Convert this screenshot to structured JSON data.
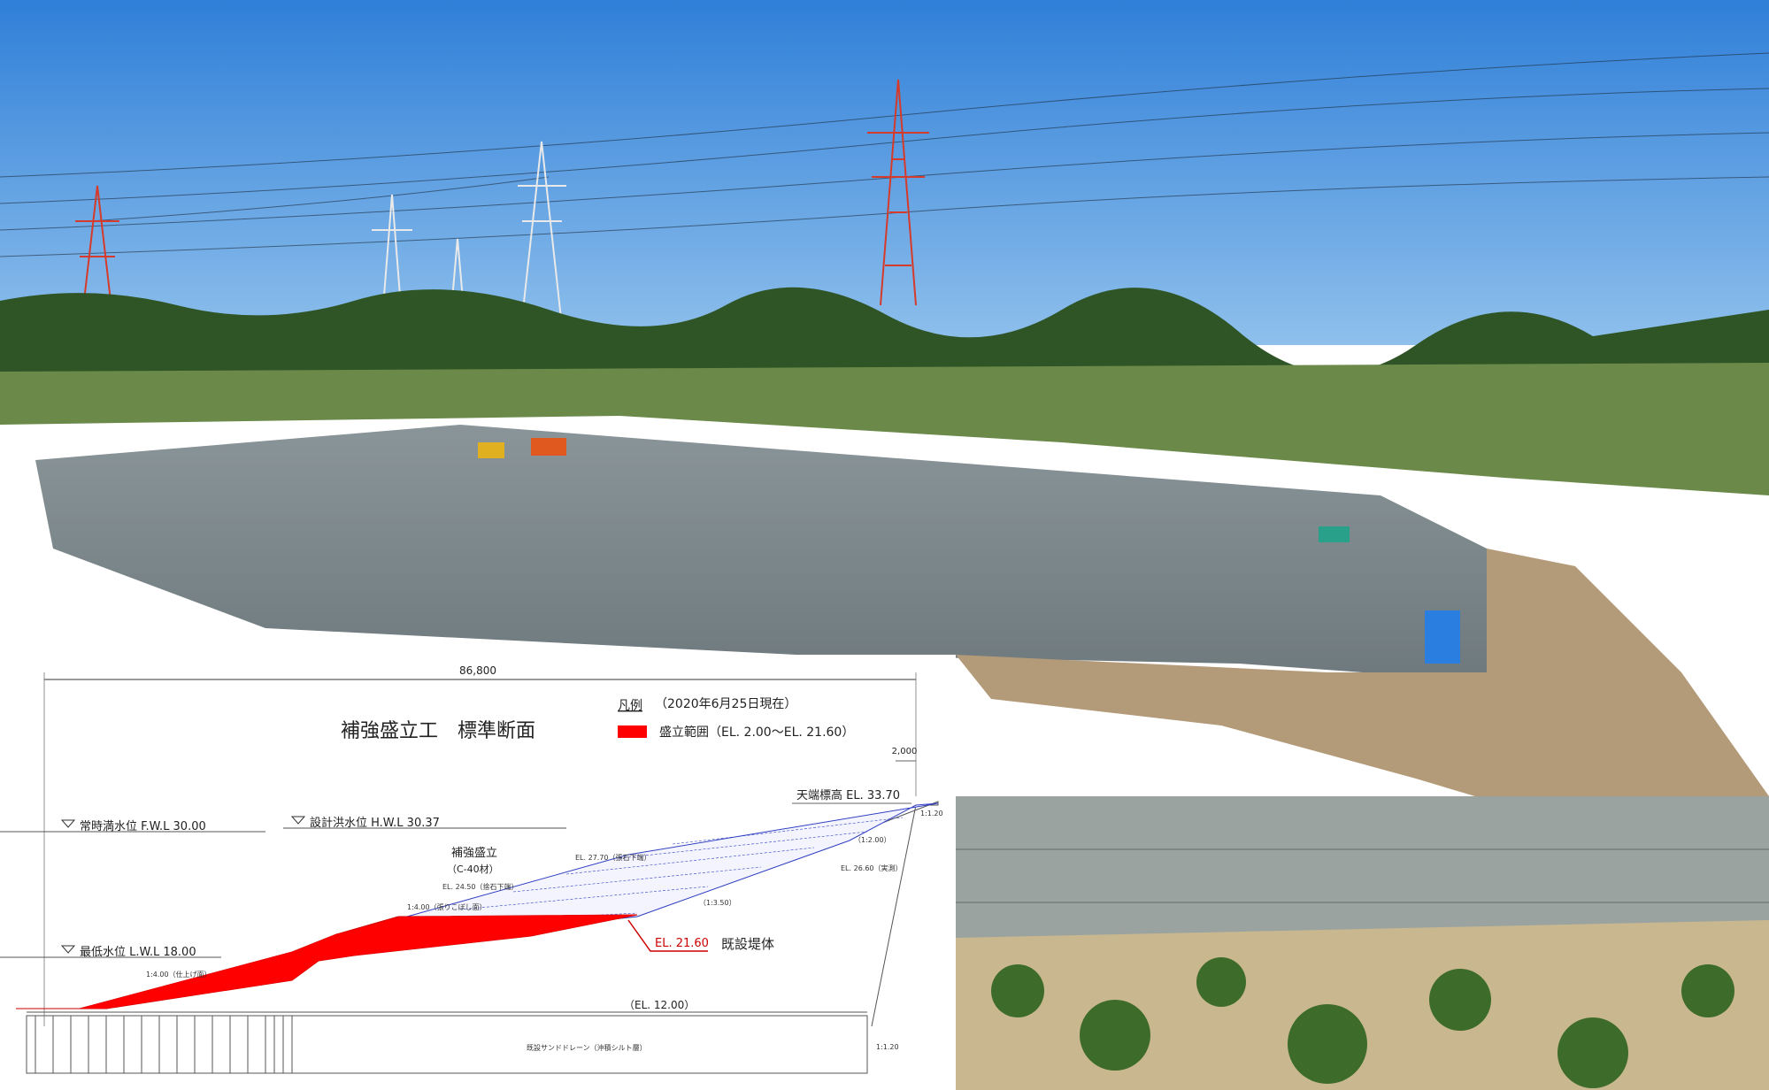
{
  "photo": {
    "sky_color": "#3f8fe0",
    "ground_color": "#7f8c8f",
    "vegetation_color": "#3f6a2f"
  },
  "drawing": {
    "title": "補強盛立工　標準断面",
    "overall_width": "86,800",
    "legend_heading": "凡例",
    "as_of": "（2020年6月25日現在）",
    "legend_item": "盛立範囲（EL. 2.00〜EL. 21.60）",
    "legend_color": "#ff0000",
    "berm_width": "2,000",
    "crest": "天端標高  EL. 33.70",
    "normal_level": "常時満水位  F.W.L 30.00",
    "flood_level": "設計洪水位  H.W.L 30.37",
    "min_level": "最低水位  L.W.L 18.00",
    "reinforced_fill": "補強盛立",
    "reinforced_material": "（C-40材）",
    "current_el": "EL. 21.60",
    "existing_body": "既設堤体",
    "base_el": "（EL. 12.00）",
    "sand_drain": "既設サンドドレーン（沖積シルト層）",
    "slope_upper": "1:1.20",
    "slope_lower": "1:1.20",
    "small_labels": {
      "el_2770": "EL. 27.70（張石下端）",
      "el_2450": "EL. 24.50（捨石下端）",
      "el_2660": "EL. 26.60（実測）",
      "slope_400_a": "1:4.00（張りこぼし面）",
      "slope_400_b": "1:4.00（仕上げ面）",
      "slope_350": "（1:3.50）",
      "slope_200": "（1:2.00）"
    }
  }
}
